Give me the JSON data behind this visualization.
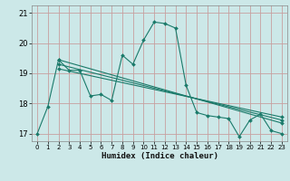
{
  "title": "",
  "xlabel": "Humidex (Indice chaleur)",
  "background_color": "#cce8e8",
  "grid_color": "#c8a0a0",
  "line_color": "#1a7a6a",
  "ylim": [
    16.75,
    21.25
  ],
  "xlim": [
    -0.5,
    23.5
  ],
  "yticks": [
    17,
    18,
    19,
    20,
    21
  ],
  "xticks": [
    0,
    1,
    2,
    3,
    4,
    5,
    6,
    7,
    8,
    9,
    10,
    11,
    12,
    13,
    14,
    15,
    16,
    17,
    18,
    19,
    20,
    21,
    22,
    23
  ],
  "series1_x": [
    0,
    1,
    2,
    3,
    4,
    5,
    6,
    7,
    8,
    9,
    10,
    11,
    12,
    13,
    14,
    15,
    16,
    17,
    18,
    19,
    20,
    21,
    22,
    23
  ],
  "series1_y": [
    17.0,
    17.9,
    19.45,
    19.1,
    19.1,
    18.25,
    18.3,
    18.1,
    19.6,
    19.3,
    20.1,
    20.7,
    20.65,
    20.5,
    18.6,
    17.7,
    17.6,
    17.55,
    17.5,
    16.9,
    17.45,
    17.65,
    17.1,
    17.0
  ],
  "series2_x": [
    2,
    23
  ],
  "series2_y": [
    19.45,
    17.35
  ],
  "series3_x": [
    2,
    23
  ],
  "series3_y": [
    19.3,
    17.45
  ],
  "series4_x": [
    2,
    23
  ],
  "series4_y": [
    19.15,
    17.55
  ]
}
